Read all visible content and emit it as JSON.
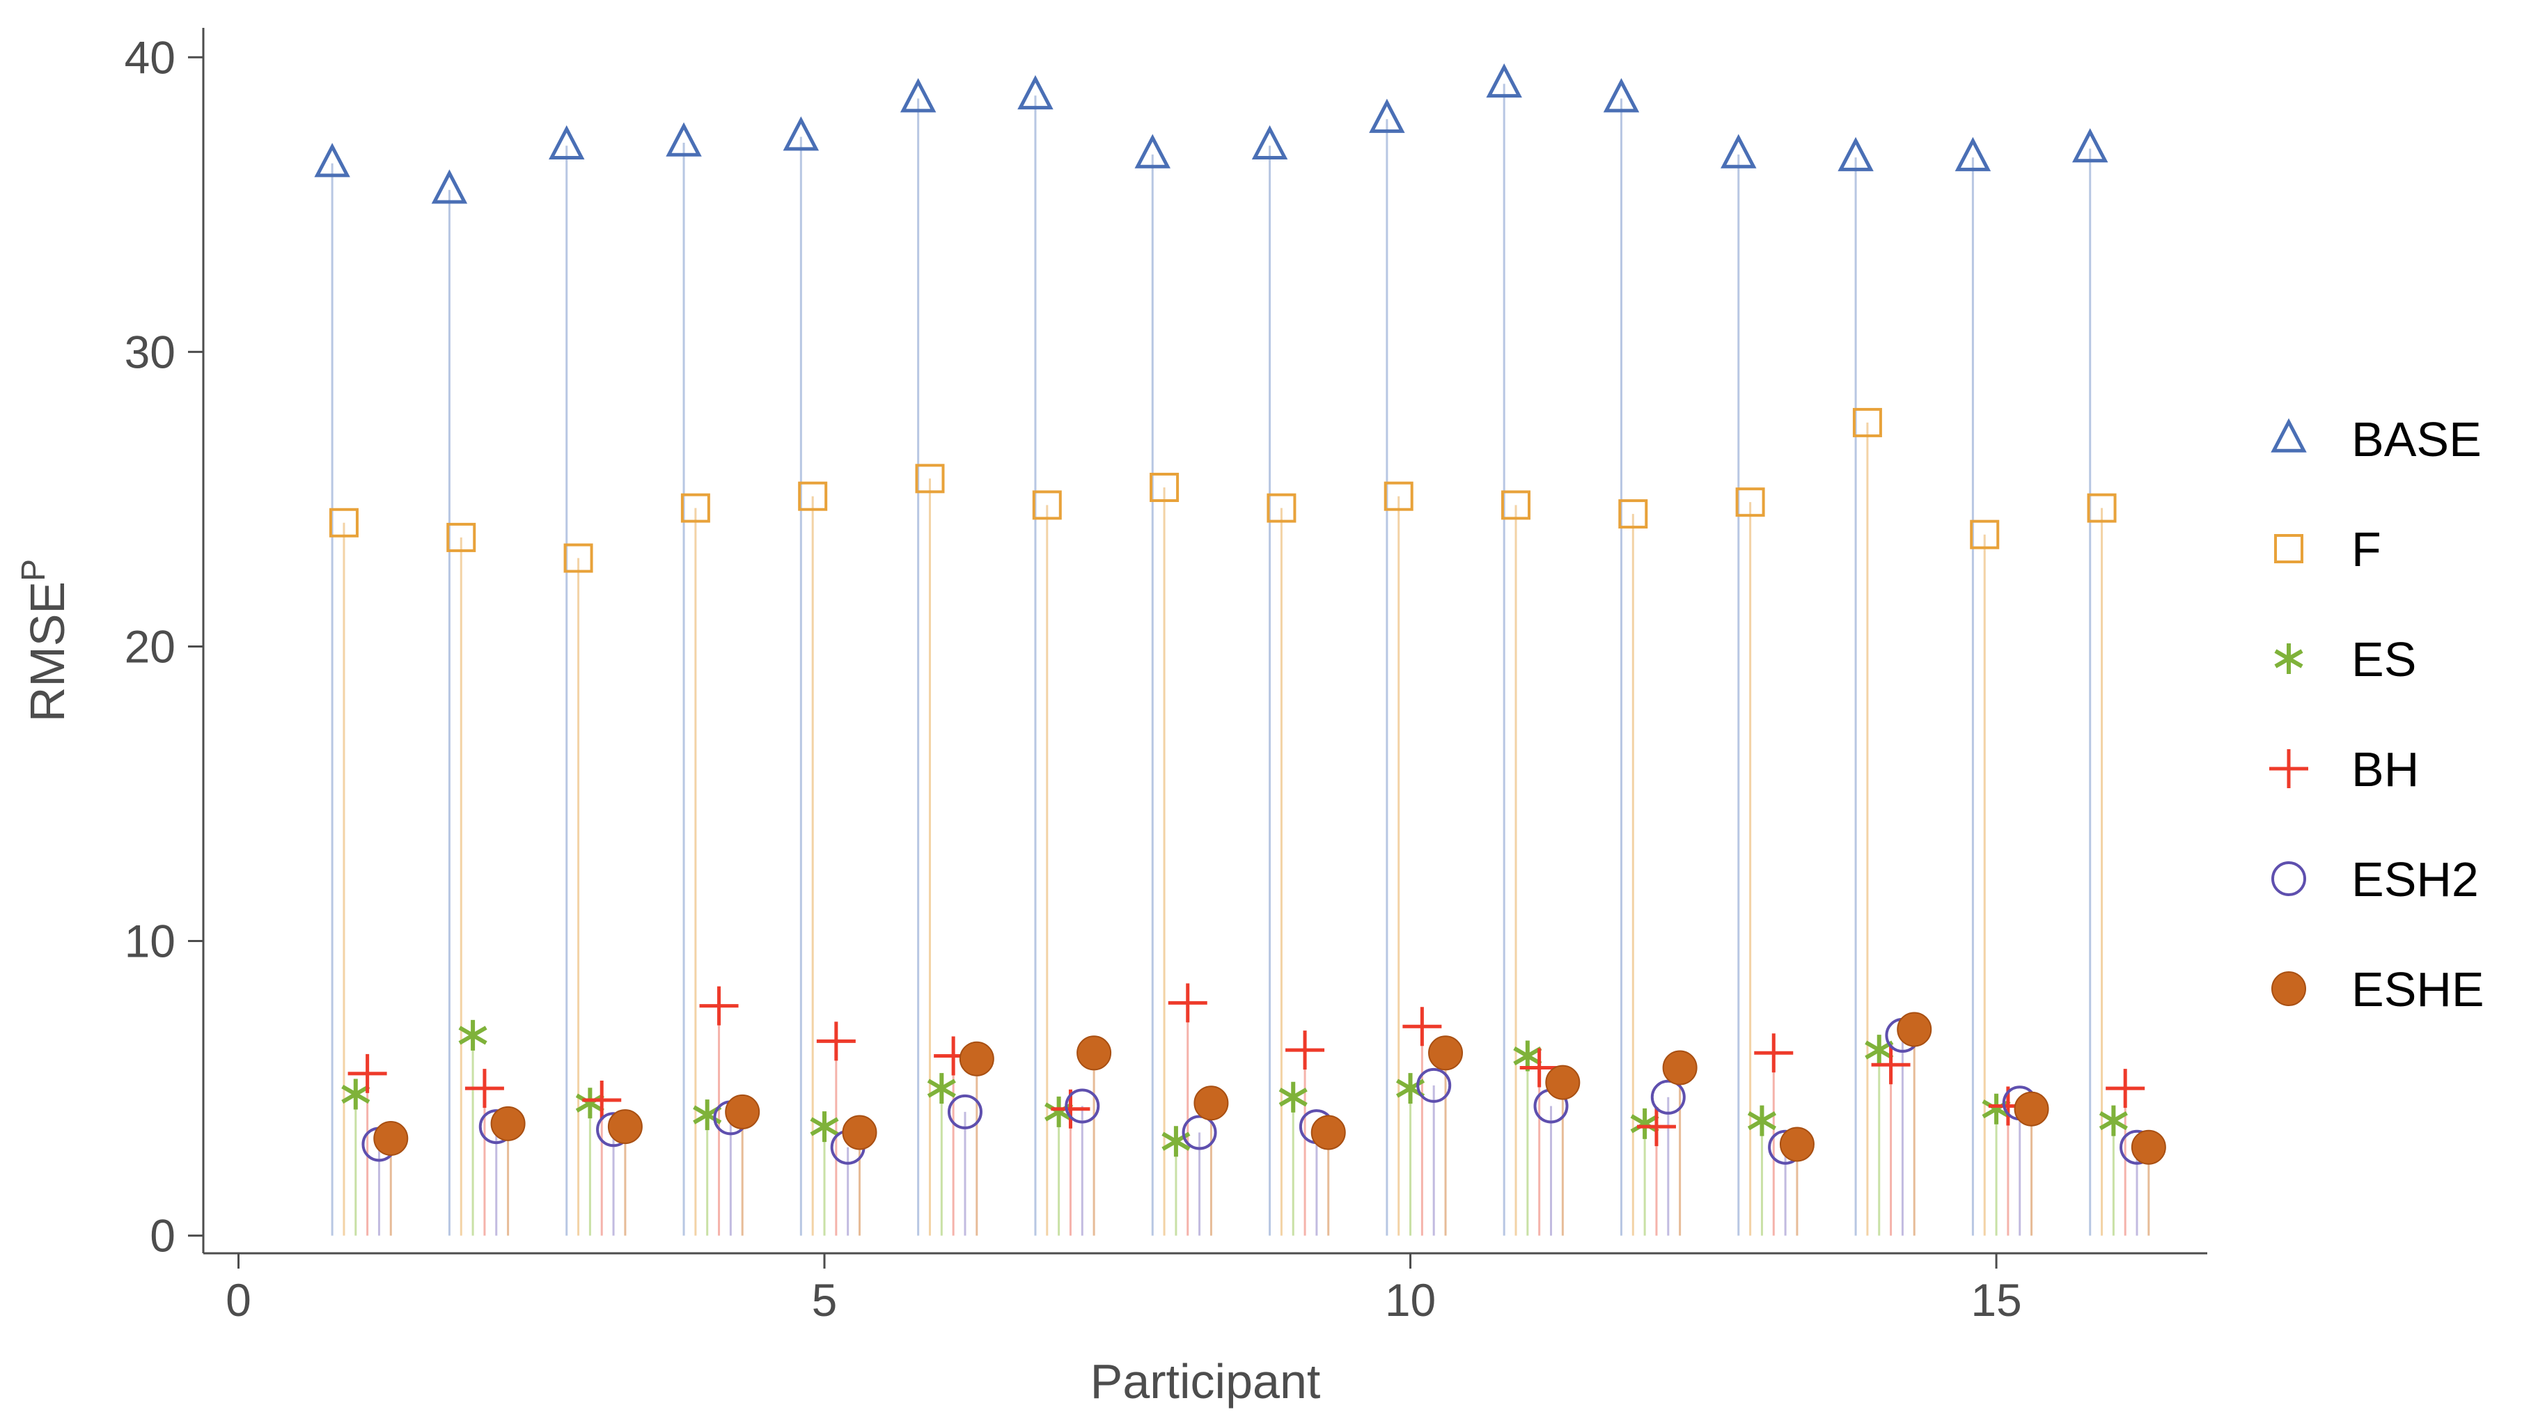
{
  "chart_data": {
    "type": "scatter",
    "subtype": "stem-plot",
    "title": "",
    "xlabel": "Participant",
    "ylabel_base": "RMSE",
    "ylabel_sup": "P",
    "xlim": [
      -0.3,
      16.8
    ],
    "ylim": [
      -0.6,
      41.0
    ],
    "xticks": [
      0,
      5,
      10,
      15
    ],
    "yticks": [
      0,
      10,
      20,
      30,
      40
    ],
    "grid": false,
    "legend_position": "right",
    "x": [
      1,
      2,
      3,
      4,
      5,
      6,
      7,
      8,
      9,
      10,
      11,
      12,
      13,
      14,
      15,
      16
    ],
    "series": [
      {
        "name": "BASE",
        "marker": "triangle-open",
        "color": "#4a6fb5",
        "stem": "#b8c7e3",
        "offset": -0.2,
        "values": [
          36.4,
          35.5,
          37.0,
          37.1,
          37.3,
          38.6,
          38.7,
          36.7,
          37.0,
          37.9,
          39.1,
          38.6,
          36.7,
          36.6,
          36.6,
          36.9
        ]
      },
      {
        "name": "F",
        "marker": "square-open",
        "color": "#e8a23a",
        "stem": "#f3d3a6",
        "offset": -0.1,
        "values": [
          24.2,
          23.7,
          23.0,
          24.7,
          25.1,
          25.7,
          24.8,
          25.4,
          24.7,
          25.1,
          24.8,
          24.5,
          24.9,
          27.6,
          23.8,
          24.7
        ]
      },
      {
        "name": "ES",
        "marker": "asterisk",
        "color": "#7fb23a",
        "stem": "#c9e1a6",
        "offset": 0.0,
        "values": [
          4.8,
          6.8,
          4.5,
          4.1,
          3.7,
          5.0,
          4.2,
          3.2,
          4.7,
          5.0,
          6.1,
          3.8,
          3.9,
          6.3,
          4.3,
          3.9
        ]
      },
      {
        "name": "BH",
        "marker": "plus",
        "color": "#ee3a2a",
        "stem": "#f5b3ab",
        "offset": 0.1,
        "values": [
          5.5,
          5.0,
          4.6,
          7.8,
          6.6,
          6.1,
          4.3,
          7.9,
          6.3,
          7.1,
          5.7,
          3.7,
          6.2,
          5.8,
          4.4,
          5.0
        ]
      },
      {
        "name": "ESH2",
        "marker": "circle-open",
        "color": "#5e4fae",
        "stem": "#c2bbe0",
        "offset": 0.2,
        "values": [
          3.1,
          3.7,
          3.6,
          4.0,
          3.0,
          4.2,
          4.4,
          3.5,
          3.7,
          5.1,
          4.4,
          4.7,
          3.0,
          6.8,
          4.5,
          3.0
        ]
      },
      {
        "name": "ESHE",
        "marker": "circle-filled",
        "color": "#c8661f",
        "stem": "#e7bc98",
        "offset": 0.3,
        "values": [
          3.3,
          3.8,
          3.7,
          4.2,
          3.5,
          6.0,
          6.2,
          4.5,
          3.5,
          6.2,
          5.2,
          5.7,
          3.1,
          7.0,
          4.3,
          3.0
        ]
      }
    ]
  }
}
